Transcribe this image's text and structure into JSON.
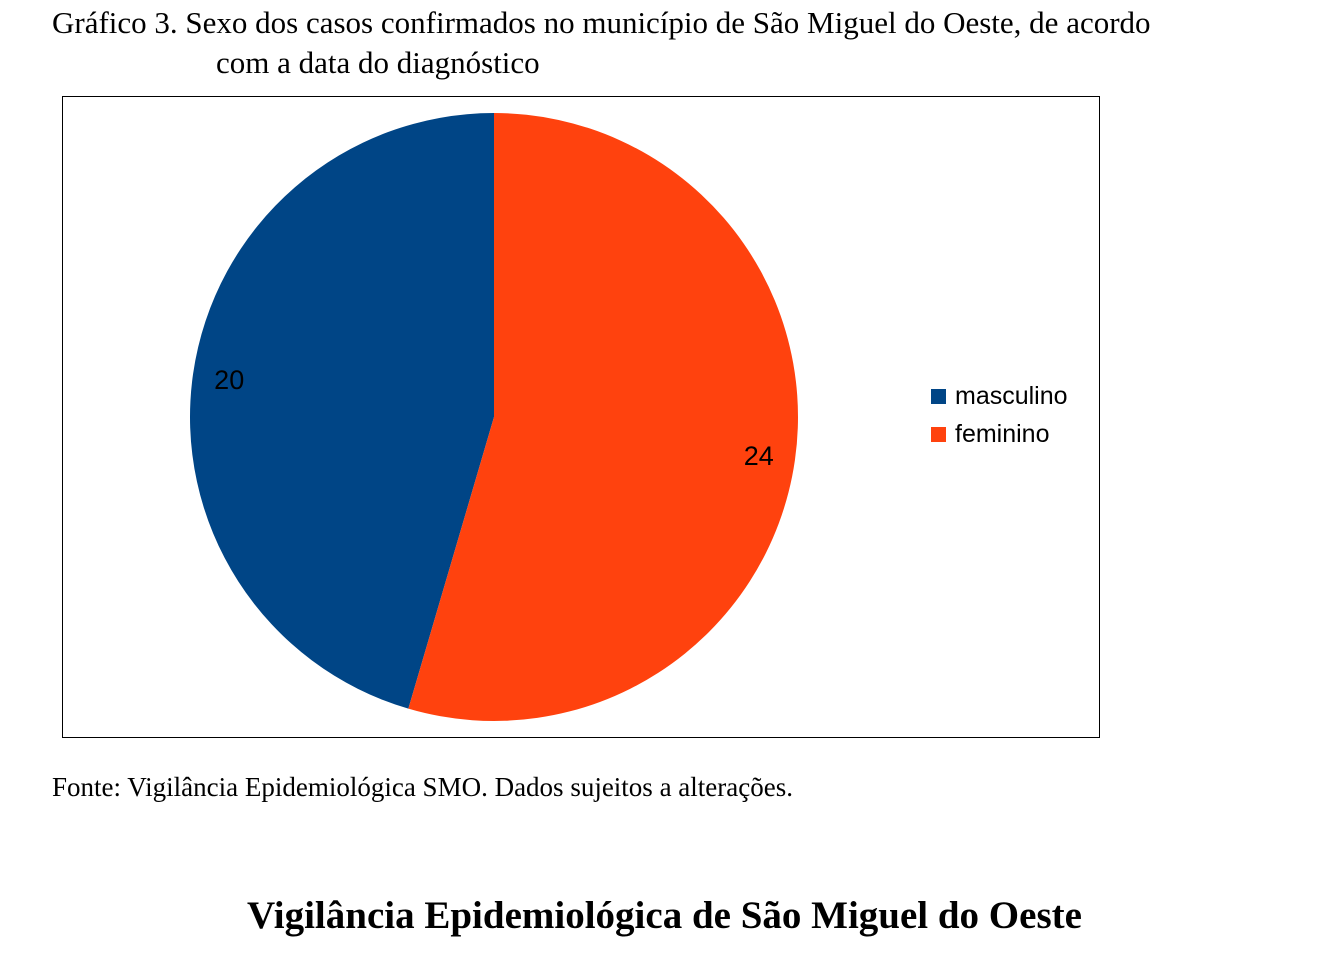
{
  "caption": {
    "line1": "Gráfico 3. Sexo dos casos confirmados no município de São Miguel do Oeste, de acordo",
    "line2": "com a data do diagnóstico"
  },
  "chart_data": {
    "type": "pie",
    "title": "",
    "categories": [
      "masculino",
      "feminino"
    ],
    "values": [
      20,
      24
    ],
    "colors": [
      "#004586",
      "#ff420e"
    ],
    "start_angle_deg": 0,
    "direction": "counterclockwise",
    "legend_position": "right",
    "data_labels": [
      "20",
      "24"
    ]
  },
  "source_note": "Fonte: Vigilância Epidemiológica SMO. Dados sujeitos a alterações.",
  "footer_title": "Vigilância Epidemiológica de São Miguel do Oeste"
}
